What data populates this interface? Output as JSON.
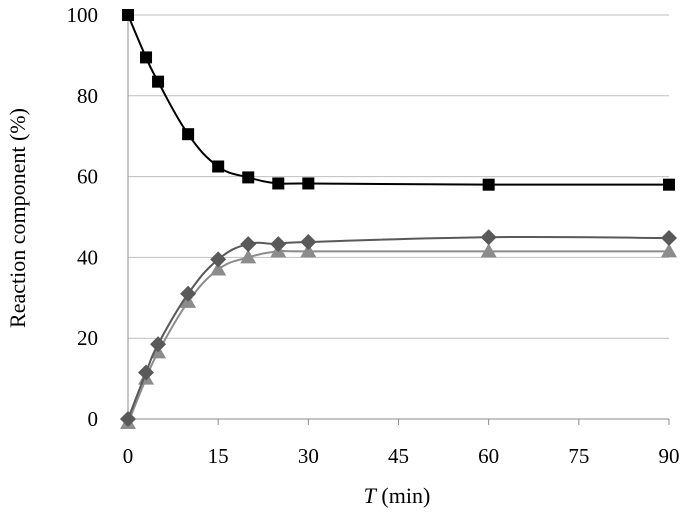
{
  "chart_data": {
    "type": "line",
    "title": "",
    "xlabel_var": "T",
    "xlabel_unit": " (min)",
    "ylabel": "Reaction component (%)",
    "xlim": [
      0,
      90
    ],
    "ylim": [
      0,
      100
    ],
    "x_ticks": [
      0,
      15,
      30,
      45,
      60,
      75,
      90
    ],
    "y_ticks": [
      0,
      20,
      40,
      60,
      80,
      100
    ],
    "grid": "horizontal",
    "legend": "none",
    "series": [
      {
        "marker": "square",
        "color": "#000000",
        "x": [
          0,
          3,
          5,
          10,
          15,
          20,
          25,
          30,
          60,
          90
        ],
        "y": [
          100,
          89.5,
          83.5,
          70.5,
          62.5,
          59.8,
          58.3,
          58.3,
          58.0,
          58.0
        ]
      },
      {
        "marker": "diamond",
        "color": "#595959",
        "x": [
          0,
          3,
          5,
          10,
          15,
          20,
          25,
          30,
          60,
          90
        ],
        "y": [
          0,
          11.5,
          18.5,
          31.0,
          39.5,
          43.3,
          43.3,
          43.8,
          45.0,
          44.8
        ]
      },
      {
        "marker": "triangle",
        "color": "#8c8c8c",
        "x": [
          0,
          3,
          5,
          10,
          15,
          20,
          25,
          30,
          60,
          90
        ],
        "y": [
          -1.0,
          10.0,
          16.5,
          29.0,
          37.0,
          40.0,
          41.5,
          41.5,
          41.5,
          41.5
        ]
      }
    ]
  }
}
